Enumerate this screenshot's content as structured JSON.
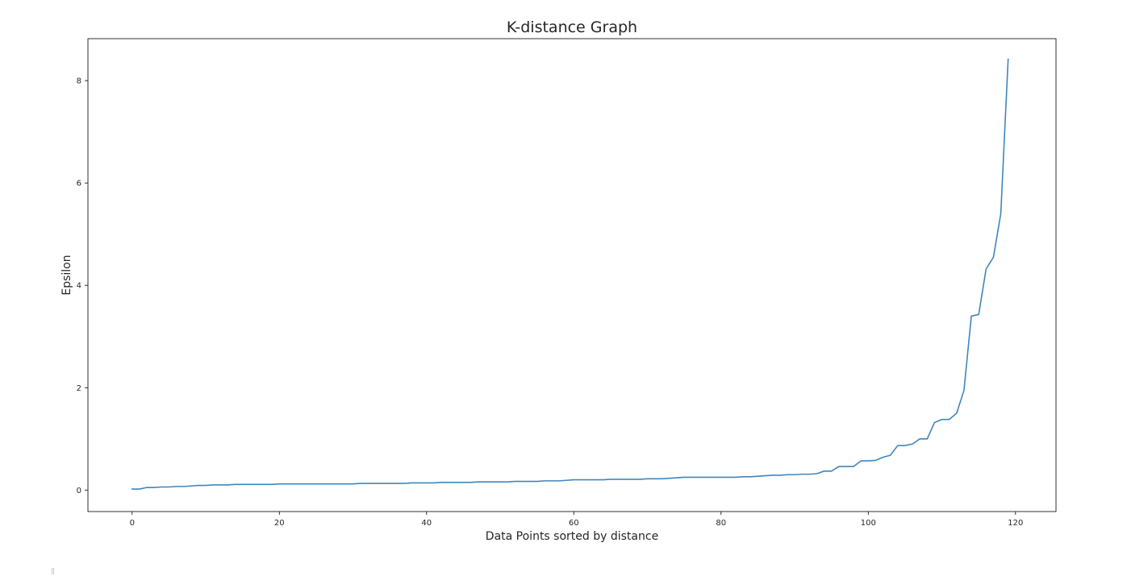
{
  "chart_data": {
    "type": "line",
    "title": "K-distance Graph",
    "xlabel": "Data Points sorted by distance",
    "ylabel": "Epsilon",
    "xlim": [
      -6,
      125.5
    ],
    "ylim": [
      -0.42,
      8.82
    ],
    "xticks": [
      0,
      20,
      40,
      60,
      80,
      100,
      120
    ],
    "yticks": [
      0,
      2,
      4,
      6,
      8
    ],
    "xtick_labels": [
      "0",
      "20",
      "40",
      "60",
      "80",
      "100",
      "120"
    ],
    "ytick_labels": [
      "0",
      "2",
      "4",
      "6",
      "8"
    ],
    "grid": false,
    "color": "#3f86bd",
    "series": [
      {
        "x": [
          0,
          1,
          2,
          3,
          4,
          5,
          6,
          7,
          8,
          9,
          10,
          11,
          12,
          13,
          14,
          15,
          16,
          17,
          18,
          19,
          20,
          21,
          22,
          23,
          24,
          25,
          26,
          27,
          28,
          29,
          30,
          31,
          32,
          33,
          34,
          35,
          36,
          37,
          38,
          39,
          40,
          41,
          42,
          43,
          44,
          45,
          46,
          47,
          48,
          49,
          50,
          51,
          52,
          53,
          54,
          55,
          56,
          57,
          58,
          59,
          60,
          61,
          62,
          63,
          64,
          65,
          66,
          67,
          68,
          69,
          70,
          71,
          72,
          73,
          74,
          75,
          76,
          77,
          78,
          79,
          80,
          81,
          82,
          83,
          84,
          85,
          86,
          87,
          88,
          89,
          90,
          91,
          92,
          93,
          94,
          95,
          96,
          97,
          98,
          99,
          100,
          101,
          102,
          103,
          104,
          105,
          106,
          107,
          108,
          109,
          110,
          111,
          112,
          113,
          114,
          115,
          116,
          117,
          118,
          119
        ],
        "y": [
          0.02,
          0.02,
          0.05,
          0.05,
          0.06,
          0.06,
          0.07,
          0.07,
          0.08,
          0.09,
          0.09,
          0.1,
          0.1,
          0.1,
          0.11,
          0.11,
          0.11,
          0.11,
          0.11,
          0.11,
          0.12,
          0.12,
          0.12,
          0.12,
          0.12,
          0.12,
          0.12,
          0.12,
          0.12,
          0.12,
          0.12,
          0.13,
          0.13,
          0.13,
          0.13,
          0.13,
          0.13,
          0.13,
          0.14,
          0.14,
          0.14,
          0.14,
          0.15,
          0.15,
          0.15,
          0.15,
          0.15,
          0.16,
          0.16,
          0.16,
          0.16,
          0.16,
          0.17,
          0.17,
          0.17,
          0.17,
          0.18,
          0.18,
          0.18,
          0.19,
          0.2,
          0.2,
          0.2,
          0.2,
          0.2,
          0.21,
          0.21,
          0.21,
          0.21,
          0.21,
          0.22,
          0.22,
          0.22,
          0.23,
          0.24,
          0.25,
          0.25,
          0.25,
          0.25,
          0.25,
          0.25,
          0.25,
          0.25,
          0.26,
          0.26,
          0.27,
          0.28,
          0.29,
          0.29,
          0.3,
          0.3,
          0.31,
          0.31,
          0.32,
          0.37,
          0.37,
          0.46,
          0.46,
          0.46,
          0.57,
          0.57,
          0.58,
          0.64,
          0.68,
          0.87,
          0.87,
          0.9,
          1.0,
          1.0,
          1.32,
          1.38,
          1.38,
          1.5,
          1.95,
          3.4,
          3.43,
          4.32,
          4.55,
          5.4,
          8.42
        ]
      }
    ]
  }
}
